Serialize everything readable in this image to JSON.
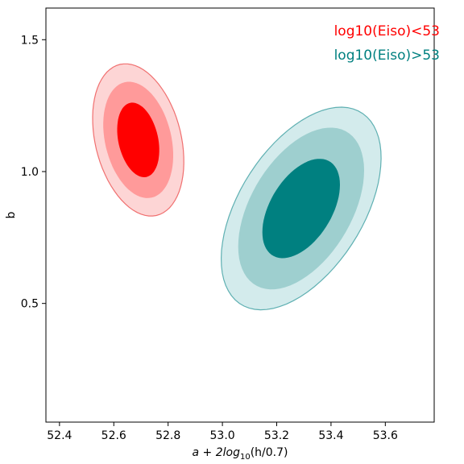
{
  "chart_data": {
    "type": "contour",
    "xlabel_main": "a + 2log",
    "xlabel_sub": "10",
    "xlabel_tail": "(h/0.7)",
    "ylabel": "b",
    "xlim": [
      52.35,
      53.78
    ],
    "ylim": [
      0.05,
      1.62
    ],
    "xticks": [
      52.4,
      52.6,
      52.8,
      53.0,
      53.2,
      53.4,
      53.6
    ],
    "xtick_labels": [
      "52.4",
      "52.6",
      "52.8",
      "53.0",
      "53.2",
      "53.4",
      "53.6"
    ],
    "yticks": [
      0.5,
      1.0,
      1.5
    ],
    "ytick_labels": [
      "0.5",
      "1.0",
      "1.5"
    ],
    "grid": false,
    "legend_position": "top-right",
    "series": [
      {
        "name": "log10(Eiso)<53",
        "color": "#ff0000",
        "level_colors": [
          "#fdd5d5",
          "#ff9a9a",
          "#ff0000"
        ],
        "edge_color": "#f07070",
        "center": [
          52.69,
          1.12
        ],
        "levels": [
          {
            "sx": 0.265,
            "sy": 0.355,
            "angle": 0.7
          },
          {
            "sx": 0.205,
            "sy": 0.27,
            "angle": 0.7
          },
          {
            "sx": 0.125,
            "sy": 0.17,
            "angle": 0.6
          }
        ]
      },
      {
        "name": "log10(Eiso)>53",
        "color": "#008080",
        "level_colors": [
          "#d3ebec",
          "#9ecfcf",
          "#008080"
        ],
        "edge_color": "#5fb0b2",
        "center": [
          53.29,
          0.86
        ],
        "levels": [
          {
            "sx": 0.33,
            "sy": 0.6,
            "angle": -1.0
          },
          {
            "sx": 0.27,
            "sy": 0.47,
            "angle": -1.0
          },
          {
            "sx": 0.165,
            "sy": 0.29,
            "angle": -1.0
          }
        ]
      }
    ]
  }
}
